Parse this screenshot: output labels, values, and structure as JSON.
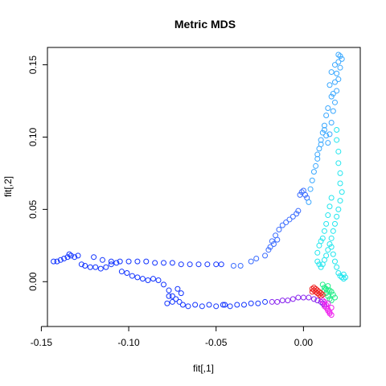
{
  "chart_data": {
    "type": "scatter",
    "title": "Metric MDS",
    "xlabel": "fit[,1]",
    "ylabel": "fit[,2]",
    "xlim": [
      -0.1465,
      0.0325
    ],
    "ylim": [
      -0.031,
      0.162
    ],
    "xticks": [
      -0.15,
      -0.1,
      -0.05,
      0.0
    ],
    "xtick_labels": [
      "-0.15",
      "-0.10",
      "-0.05",
      "0.00"
    ],
    "yticks": [
      0.0,
      0.05,
      0.1,
      0.15
    ],
    "ytick_labels": [
      "0.00",
      "0.05",
      "0.10",
      "0.15"
    ],
    "grid": false,
    "marker": "open-circle",
    "series": [
      {
        "color": "#1133ff",
        "points": [
          [
            -0.143,
            0.014
          ],
          [
            -0.141,
            0.014
          ],
          [
            -0.139,
            0.015
          ],
          [
            -0.137,
            0.016
          ],
          [
            -0.135,
            0.017
          ],
          [
            -0.134,
            0.019
          ],
          [
            -0.133,
            0.018
          ],
          [
            -0.131,
            0.017
          ],
          [
            -0.129,
            0.018
          ],
          [
            -0.127,
            0.012
          ],
          [
            -0.125,
            0.011
          ],
          [
            -0.122,
            0.01
          ],
          [
            -0.119,
            0.01
          ],
          [
            -0.116,
            0.009
          ],
          [
            -0.113,
            0.01
          ],
          [
            -0.11,
            0.012
          ],
          [
            -0.107,
            0.013
          ],
          [
            -0.104,
            0.007
          ],
          [
            -0.101,
            0.006
          ],
          [
            -0.098,
            0.004
          ],
          [
            -0.095,
            0.003
          ],
          [
            -0.092,
            0.002
          ],
          [
            -0.089,
            0.001
          ],
          [
            -0.086,
            0.002
          ],
          [
            -0.083,
            0.001
          ],
          [
            -0.08,
            -0.002
          ],
          [
            -0.077,
            -0.006
          ],
          [
            -0.075,
            -0.01
          ],
          [
            -0.073,
            -0.012
          ],
          [
            -0.071,
            -0.014
          ],
          [
            -0.069,
            -0.016
          ],
          [
            -0.066,
            -0.017
          ],
          [
            -0.062,
            -0.016
          ],
          [
            -0.058,
            -0.017
          ],
          [
            -0.054,
            -0.016
          ],
          [
            -0.05,
            -0.017
          ],
          [
            -0.046,
            -0.016
          ],
          [
            -0.042,
            -0.017
          ],
          [
            -0.038,
            -0.016
          ],
          [
            -0.034,
            -0.016
          ],
          [
            -0.03,
            -0.015
          ],
          [
            -0.026,
            -0.015
          ],
          [
            -0.022,
            -0.014
          ],
          [
            -0.12,
            0.017
          ],
          [
            -0.115,
            0.015
          ],
          [
            -0.11,
            0.014
          ],
          [
            -0.105,
            0.014
          ],
          [
            -0.1,
            0.014
          ],
          [
            -0.095,
            0.014
          ],
          [
            -0.09,
            0.014
          ],
          [
            -0.085,
            0.013
          ],
          [
            -0.08,
            0.013
          ],
          [
            -0.075,
            0.013
          ],
          [
            -0.07,
            0.012
          ],
          [
            -0.065,
            0.012
          ],
          [
            -0.06,
            0.012
          ],
          [
            -0.055,
            0.012
          ],
          [
            -0.05,
            0.012
          ],
          [
            -0.047,
            0.012
          ],
          [
            -0.075,
            -0.014
          ],
          [
            -0.077,
            -0.01
          ],
          [
            -0.072,
            -0.005
          ],
          [
            -0.07,
            -0.008
          ],
          [
            -0.078,
            -0.015
          ],
          [
            -0.045,
            -0.016
          ]
        ]
      },
      {
        "color": "#3a6cff",
        "points": [
          [
            -0.04,
            0.011
          ],
          [
            -0.036,
            0.011
          ],
          [
            -0.03,
            0.014
          ],
          [
            -0.027,
            0.016
          ],
          [
            -0.022,
            0.018
          ],
          [
            -0.02,
            0.022
          ],
          [
            -0.018,
            0.028
          ],
          [
            -0.016,
            0.032
          ],
          [
            -0.014,
            0.036
          ],
          [
            -0.012,
            0.039
          ],
          [
            -0.01,
            0.041
          ],
          [
            -0.008,
            0.043
          ],
          [
            -0.006,
            0.045
          ],
          [
            -0.004,
            0.047
          ],
          [
            -0.003,
            0.049
          ],
          [
            -0.002,
            0.06
          ],
          [
            -0.001,
            0.062
          ],
          [
            0.0,
            0.063
          ],
          [
            0.001,
            0.06
          ],
          [
            0.002,
            0.058
          ],
          [
            -0.019,
            0.024
          ],
          [
            -0.017,
            0.026
          ],
          [
            -0.015,
            0.029
          ]
        ]
      },
      {
        "color": "#3aa8ff",
        "points": [
          [
            0.003,
            0.055
          ],
          [
            0.004,
            0.064
          ],
          [
            0.005,
            0.07
          ],
          [
            0.006,
            0.076
          ],
          [
            0.007,
            0.08
          ],
          [
            0.008,
            0.085
          ],
          [
            0.009,
            0.092
          ],
          [
            0.01,
            0.098
          ],
          [
            0.011,
            0.103
          ],
          [
            0.012,
            0.105
          ],
          [
            0.013,
            0.101
          ],
          [
            0.014,
            0.096
          ],
          [
            0.015,
            0.102
          ],
          [
            0.016,
            0.11
          ],
          [
            0.017,
            0.118
          ],
          [
            0.018,
            0.124
          ],
          [
            0.019,
            0.132
          ],
          [
            0.02,
            0.14
          ],
          [
            0.021,
            0.148
          ],
          [
            0.022,
            0.154
          ],
          [
            0.021,
            0.156
          ],
          [
            0.02,
            0.152
          ],
          [
            0.019,
            0.144
          ],
          [
            0.018,
            0.138
          ],
          [
            0.017,
            0.13
          ],
          [
            0.016,
            0.128
          ],
          [
            0.015,
            0.136
          ],
          [
            0.016,
            0.145
          ],
          [
            0.018,
            0.15
          ],
          [
            0.02,
            0.157
          ],
          [
            0.014,
            0.12
          ],
          [
            0.013,
            0.115
          ],
          [
            0.012,
            0.108
          ],
          [
            0.01,
            0.095
          ],
          [
            0.008,
            0.088
          ]
        ]
      },
      {
        "color": "#22e6ee",
        "points": [
          [
            0.019,
            0.105
          ],
          [
            0.019,
            0.098
          ],
          [
            0.02,
            0.09
          ],
          [
            0.02,
            0.082
          ],
          [
            0.021,
            0.075
          ],
          [
            0.021,
            0.068
          ],
          [
            0.022,
            0.062
          ],
          [
            0.021,
            0.056
          ],
          [
            0.02,
            0.05
          ],
          [
            0.019,
            0.045
          ],
          [
            0.018,
            0.04
          ],
          [
            0.017,
            0.035
          ],
          [
            0.016,
            0.03
          ],
          [
            0.015,
            0.026
          ],
          [
            0.014,
            0.022
          ],
          [
            0.013,
            0.018
          ],
          [
            0.012,
            0.015
          ],
          [
            0.011,
            0.012
          ],
          [
            0.01,
            0.01
          ],
          [
            0.009,
            0.012
          ],
          [
            0.008,
            0.014
          ],
          [
            0.008,
            0.02
          ],
          [
            0.009,
            0.025
          ],
          [
            0.01,
            0.028
          ],
          [
            0.011,
            0.03
          ],
          [
            0.016,
            0.024
          ],
          [
            0.017,
            0.019
          ],
          [
            0.018,
            0.014
          ],
          [
            0.019,
            0.01
          ],
          [
            0.02,
            0.006
          ],
          [
            0.021,
            0.004
          ],
          [
            0.022,
            0.003
          ],
          [
            0.023,
            0.002
          ],
          [
            0.024,
            0.003
          ],
          [
            0.023,
            0.005
          ],
          [
            0.012,
            0.035
          ],
          [
            0.013,
            0.04
          ],
          [
            0.014,
            0.046
          ],
          [
            0.015,
            0.052
          ],
          [
            0.016,
            0.058
          ]
        ]
      },
      {
        "color": "#22ee88",
        "points": [
          [
            0.011,
            -0.002
          ],
          [
            0.012,
            -0.004
          ],
          [
            0.013,
            -0.005
          ],
          [
            0.014,
            -0.006
          ],
          [
            0.015,
            -0.006
          ],
          [
            0.016,
            -0.007
          ],
          [
            0.013,
            -0.008
          ],
          [
            0.014,
            -0.01
          ],
          [
            0.015,
            -0.012
          ],
          [
            0.016,
            -0.013
          ],
          [
            0.012,
            -0.006
          ],
          [
            0.017,
            -0.009
          ],
          [
            0.018,
            -0.011
          ],
          [
            0.014,
            -0.003
          ]
        ]
      },
      {
        "color": "#ee2222",
        "points": [
          [
            0.005,
            -0.005
          ],
          [
            0.006,
            -0.004
          ],
          [
            0.007,
            -0.005
          ],
          [
            0.008,
            -0.006
          ],
          [
            0.009,
            -0.007
          ],
          [
            0.01,
            -0.008
          ],
          [
            0.011,
            -0.009
          ],
          [
            0.006,
            -0.006
          ],
          [
            0.007,
            -0.007
          ],
          [
            0.008,
            -0.008
          ],
          [
            0.009,
            -0.009
          ],
          [
            0.01,
            -0.01
          ],
          [
            0.005,
            -0.007
          ]
        ]
      },
      {
        "color": "#8822ee",
        "points": [
          [
            -0.018,
            -0.014
          ],
          [
            -0.015,
            -0.014
          ],
          [
            -0.012,
            -0.013
          ],
          [
            -0.009,
            -0.013
          ],
          [
            -0.006,
            -0.012
          ],
          [
            -0.003,
            -0.011
          ],
          [
            0.0,
            -0.011
          ],
          [
            0.003,
            -0.011
          ],
          [
            0.006,
            -0.012
          ],
          [
            0.008,
            -0.013
          ],
          [
            0.01,
            -0.014
          ],
          [
            0.011,
            -0.015
          ],
          [
            0.012,
            -0.016
          ]
        ]
      },
      {
        "color": "#ee22ee",
        "points": [
          [
            0.012,
            -0.017
          ],
          [
            0.013,
            -0.018
          ],
          [
            0.014,
            -0.019
          ],
          [
            0.014,
            -0.02
          ],
          [
            0.015,
            -0.021
          ],
          [
            0.015,
            -0.022
          ],
          [
            0.016,
            -0.023
          ],
          [
            0.013,
            -0.016
          ],
          [
            0.012,
            -0.014
          ],
          [
            0.011,
            -0.013
          ],
          [
            0.014,
            -0.015
          ],
          [
            0.016,
            -0.018
          ]
        ]
      }
    ]
  }
}
